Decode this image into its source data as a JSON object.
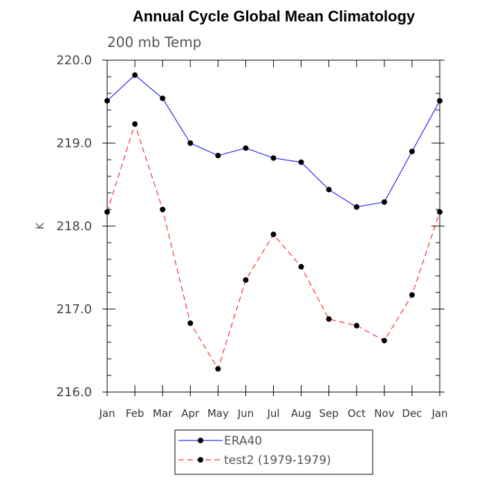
{
  "chart_data": {
    "type": "line",
    "title": "Annual Cycle Global Mean Climatology",
    "subtitle": "200 mb Temp",
    "ylabel": "K",
    "xlabel": "",
    "ylim": [
      216.0,
      220.0
    ],
    "yticks": [
      "216.0",
      "217.0",
      "218.0",
      "219.0",
      "220.0"
    ],
    "categories": [
      "Jan",
      "Feb",
      "Mar",
      "Apr",
      "May",
      "Jun",
      "Jul",
      "Aug",
      "Sep",
      "Oct",
      "Nov",
      "Dec",
      "Jan"
    ],
    "series": [
      {
        "name": "ERA40",
        "color": "#0000ff",
        "dash": "solid",
        "values": [
          219.51,
          219.82,
          219.54,
          219.0,
          218.85,
          218.94,
          218.82,
          218.77,
          218.44,
          218.23,
          218.29,
          218.9,
          219.51
        ]
      },
      {
        "name": "test2 (1979-1979)",
        "color": "#ff0000",
        "dash": "dashed",
        "values": [
          218.17,
          219.23,
          218.2,
          216.83,
          216.28,
          217.35,
          217.9,
          217.51,
          216.88,
          216.8,
          216.62,
          217.17,
          218.17
        ]
      }
    ],
    "marker_color": "#000000",
    "grid": false,
    "legend_position": "bottom"
  }
}
